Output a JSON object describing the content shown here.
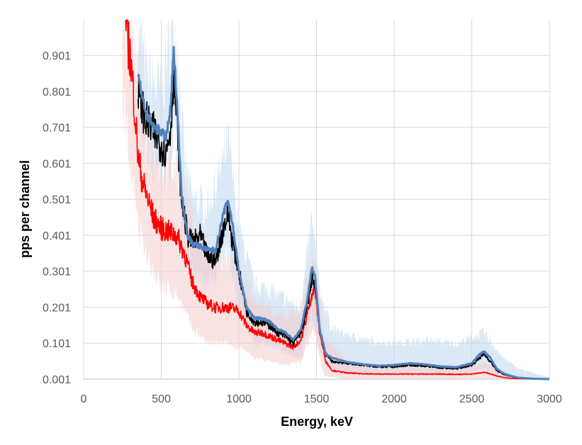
{
  "chart_data": {
    "type": "line",
    "title": "",
    "xlabel": "Energy, keV",
    "ylabel": "pps per channel",
    "xlim": [
      0,
      3000
    ],
    "ylim": [
      0.001,
      1.0
    ],
    "grid": true,
    "legend": "none",
    "x_ticks": [
      0,
      500,
      1000,
      1500,
      2000,
      2500,
      3000
    ],
    "y_ticks": [
      0.001,
      0.101,
      0.201,
      0.301,
      0.401,
      0.501,
      0.601,
      0.701,
      0.801,
      0.901
    ],
    "x_tick_labels": [
      "0",
      "500",
      "1000",
      "1500",
      "2000",
      "2500",
      "3000"
    ],
    "y_tick_labels": [
      "0.001",
      "0.101",
      "0.201",
      "0.301",
      "0.401",
      "0.501",
      "0.601",
      "0.701",
      "0.801",
      "0.901"
    ],
    "series": [
      {
        "name": "black spectrum",
        "color": "#000000",
        "role": "line",
        "x": [
          350,
          400,
          450,
          500,
          530,
          560,
          580,
          600,
          630,
          670,
          700,
          750,
          800,
          850,
          900,
          930,
          960,
          1000,
          1050,
          1100,
          1150,
          1200,
          1250,
          1300,
          1350,
          1400,
          1440,
          1470,
          1490,
          1520,
          1560,
          1600,
          1700,
          1800,
          1900,
          2000,
          2100,
          2200,
          2300,
          2400,
          2500,
          2550,
          2580,
          2620,
          2660,
          2700,
          2750,
          2800,
          2900,
          3000
        ],
        "values": [
          0.8,
          0.72,
          0.69,
          0.65,
          0.63,
          0.7,
          0.85,
          0.72,
          0.5,
          0.4,
          0.38,
          0.4,
          0.34,
          0.33,
          0.42,
          0.46,
          0.38,
          0.3,
          0.19,
          0.16,
          0.16,
          0.15,
          0.13,
          0.12,
          0.1,
          0.13,
          0.2,
          0.28,
          0.27,
          0.14,
          0.07,
          0.05,
          0.045,
          0.04,
          0.035,
          0.035,
          0.04,
          0.038,
          0.032,
          0.03,
          0.04,
          0.06,
          0.07,
          0.05,
          0.025,
          0.015,
          0.008,
          0.004,
          0.002,
          0.001
        ]
      },
      {
        "name": "blue spectrum",
        "color": "#4f81bd",
        "role": "line",
        "x": [
          350,
          400,
          450,
          500,
          530,
          560,
          580,
          600,
          630,
          670,
          700,
          750,
          800,
          850,
          900,
          930,
          960,
          1000,
          1050,
          1100,
          1150,
          1200,
          1250,
          1300,
          1350,
          1400,
          1440,
          1470,
          1490,
          1520,
          1560,
          1600,
          1700,
          1800,
          1900,
          2000,
          2100,
          2200,
          2300,
          2400,
          2500,
          2550,
          2580,
          2620,
          2660,
          2700,
          2750,
          2800,
          2900,
          3000
        ],
        "values": [
          0.85,
          0.74,
          0.7,
          0.69,
          0.67,
          0.75,
          0.91,
          0.78,
          0.52,
          0.4,
          0.38,
          0.37,
          0.36,
          0.36,
          0.46,
          0.5,
          0.43,
          0.3,
          0.2,
          0.17,
          0.17,
          0.16,
          0.14,
          0.13,
          0.11,
          0.14,
          0.22,
          0.31,
          0.29,
          0.14,
          0.07,
          0.06,
          0.048,
          0.042,
          0.038,
          0.04,
          0.045,
          0.042,
          0.036,
          0.034,
          0.045,
          0.07,
          0.078,
          0.06,
          0.03,
          0.018,
          0.01,
          0.005,
          0.002,
          0.001
        ]
      },
      {
        "name": "red spectrum",
        "color": "#ff0000",
        "role": "line",
        "x": [
          270,
          300,
          330,
          350,
          380,
          400,
          450,
          500,
          550,
          600,
          650,
          700,
          750,
          800,
          850,
          900,
          950,
          1000,
          1050,
          1100,
          1150,
          1200,
          1250,
          1300,
          1350,
          1400,
          1440,
          1470,
          1490,
          1520,
          1560,
          1600,
          1700,
          1800,
          1900,
          2000,
          2100,
          2200,
          2300,
          2400,
          2500,
          2550,
          2580,
          2620,
          2660,
          2700,
          2750,
          2800,
          2900,
          3000
        ],
        "values": [
          0.99,
          0.9,
          0.75,
          0.62,
          0.55,
          0.52,
          0.45,
          0.42,
          0.41,
          0.4,
          0.35,
          0.27,
          0.23,
          0.21,
          0.2,
          0.2,
          0.2,
          0.19,
          0.15,
          0.13,
          0.13,
          0.12,
          0.11,
          0.1,
          0.09,
          0.11,
          0.18,
          0.24,
          0.25,
          0.13,
          0.05,
          0.025,
          0.018,
          0.016,
          0.015,
          0.015,
          0.015,
          0.015,
          0.015,
          0.014,
          0.015,
          0.018,
          0.02,
          0.015,
          0.01,
          0.006,
          0.003,
          0.002,
          0.001,
          0.001
        ]
      },
      {
        "name": "blue uncertainty band",
        "color": "#bdd7ee",
        "role": "band",
        "x": [
          350,
          400,
          450,
          500,
          560,
          580,
          600,
          650,
          700,
          800,
          900,
          930,
          1000,
          1100,
          1200,
          1300,
          1400,
          1470,
          1520,
          1600,
          1800,
          2000,
          2200,
          2400,
          2580,
          2700,
          2800,
          3000
        ],
        "upper": [
          1.0,
          0.85,
          0.82,
          0.8,
          0.95,
          1.0,
          0.95,
          0.6,
          0.5,
          0.48,
          0.6,
          0.66,
          0.42,
          0.26,
          0.25,
          0.22,
          0.2,
          0.45,
          0.25,
          0.14,
          0.11,
          0.1,
          0.11,
          0.1,
          0.13,
          0.06,
          0.03,
          0.005
        ],
        "lower": [
          0.7,
          0.64,
          0.6,
          0.58,
          0.6,
          0.7,
          0.6,
          0.34,
          0.3,
          0.26,
          0.32,
          0.36,
          0.2,
          0.1,
          0.1,
          0.07,
          0.06,
          0.18,
          0.08,
          0.02,
          0.01,
          0.01,
          0.01,
          0.01,
          0.03,
          0.005,
          0.001,
          0.001
        ]
      },
      {
        "name": "red uncertainty band",
        "color": "#f4cccc",
        "role": "band",
        "x": [
          250,
          300,
          350,
          400,
          500,
          600,
          700,
          800,
          900,
          1000,
          1100,
          1200,
          1300,
          1400,
          1480,
          1550,
          1700,
          1900,
          2100,
          2300,
          2500,
          2600,
          2700,
          2800,
          3000
        ],
        "upper": [
          1.0,
          1.0,
          0.82,
          0.7,
          0.6,
          0.58,
          0.45,
          0.35,
          0.33,
          0.3,
          0.22,
          0.2,
          0.17,
          0.2,
          0.35,
          0.12,
          0.05,
          0.04,
          0.04,
          0.04,
          0.04,
          0.045,
          0.02,
          0.006,
          0.002
        ],
        "lower": [
          0.8,
          0.6,
          0.42,
          0.35,
          0.26,
          0.24,
          0.14,
          0.1,
          0.1,
          0.09,
          0.06,
          0.05,
          0.04,
          0.05,
          0.14,
          0.01,
          0.001,
          0.001,
          0.001,
          0.001,
          0.001,
          0.001,
          0.001,
          0.001,
          0.001
        ]
      }
    ]
  }
}
